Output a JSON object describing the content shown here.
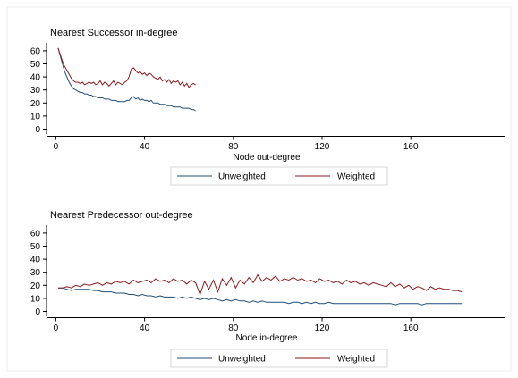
{
  "chart_data": [
    {
      "type": "line",
      "title": "Nearest Successor in-degree",
      "xlabel": "Node out-degree",
      "ylabel": "",
      "xlim": [
        0,
        200
      ],
      "ylim": [
        0,
        65
      ],
      "xticks": [
        0,
        40,
        80,
        120,
        160
      ],
      "xtick_labels": [
        "0",
        "40",
        "80",
        "120",
        "160"
      ],
      "yticks": [
        0,
        10,
        20,
        30,
        40,
        50,
        60
      ],
      "ytick_labels": [
        "0",
        "10",
        "20",
        "30",
        "40",
        "50",
        "60"
      ],
      "grid": false,
      "legend": "bottom",
      "series": [
        {
          "name": "Unweighted",
          "color": "#1f4e79",
          "x": [
            1,
            2,
            3,
            4,
            5,
            6,
            7,
            8,
            9,
            10,
            11,
            12,
            13,
            14,
            15,
            16,
            17,
            18,
            19,
            20,
            21,
            22,
            23,
            24,
            25,
            26,
            27,
            28,
            29,
            30,
            31,
            32,
            33,
            34,
            35,
            36,
            37,
            38,
            39,
            40,
            41,
            42,
            43,
            44,
            45,
            46,
            47,
            48,
            49,
            50,
            51,
            52,
            53,
            54,
            55,
            56,
            57,
            58,
            59,
            60,
            61,
            62,
            63
          ],
          "y": [
            62,
            56,
            50,
            44,
            40,
            36,
            33,
            31,
            30,
            29,
            28,
            28,
            27,
            27,
            26,
            26,
            25,
            25,
            24,
            24,
            24,
            23,
            23,
            23,
            22,
            22,
            22,
            21,
            21,
            21,
            21,
            22,
            22,
            24,
            25,
            23,
            24,
            22,
            23,
            22,
            22,
            21,
            22,
            20,
            20,
            20,
            19,
            19,
            19,
            18,
            18,
            18,
            17,
            17,
            17,
            17,
            16,
            16,
            16,
            16,
            15,
            15,
            14
          ]
        },
        {
          "name": "Weighted",
          "color": "#8b1a1a",
          "x": [
            1,
            2,
            3,
            4,
            5,
            6,
            7,
            8,
            9,
            10,
            11,
            12,
            13,
            14,
            15,
            16,
            17,
            18,
            19,
            20,
            21,
            22,
            23,
            24,
            25,
            26,
            27,
            28,
            29,
            30,
            31,
            32,
            33,
            34,
            35,
            36,
            37,
            38,
            39,
            40,
            41,
            42,
            43,
            44,
            45,
            46,
            47,
            48,
            49,
            50,
            51,
            52,
            53,
            54,
            55,
            56,
            57,
            58,
            59,
            60,
            61,
            62,
            63
          ],
          "y": [
            62,
            57,
            52,
            48,
            45,
            42,
            39,
            37,
            36,
            36,
            35,
            36,
            34,
            35,
            36,
            35,
            36,
            34,
            35,
            37,
            34,
            36,
            35,
            33,
            35,
            37,
            34,
            36,
            35,
            34,
            36,
            37,
            40,
            46,
            47,
            45,
            43,
            44,
            42,
            43,
            41,
            43,
            42,
            40,
            39,
            38,
            40,
            37,
            38,
            36,
            38,
            35,
            37,
            36,
            37,
            34,
            36,
            33,
            35,
            32,
            34,
            35,
            34
          ]
        }
      ]
    },
    {
      "type": "line",
      "title": "Nearest Predecessor out-degree",
      "xlabel": "Node in-degree",
      "ylabel": "",
      "xlim": [
        0,
        200
      ],
      "ylim": [
        0,
        65
      ],
      "xticks": [
        0,
        40,
        80,
        120,
        160
      ],
      "xtick_labels": [
        "0",
        "40",
        "80",
        "120",
        "160"
      ],
      "yticks": [
        0,
        10,
        20,
        30,
        40,
        50,
        60
      ],
      "ytick_labels": [
        "0",
        "10",
        "20",
        "30",
        "40",
        "50",
        "60"
      ],
      "grid": false,
      "legend": "bottom",
      "series": [
        {
          "name": "Unweighted",
          "color": "#1f4e79",
          "x": [
            1,
            3,
            5,
            7,
            9,
            11,
            13,
            15,
            17,
            19,
            21,
            23,
            25,
            27,
            29,
            31,
            33,
            35,
            37,
            39,
            41,
            43,
            45,
            47,
            49,
            51,
            53,
            55,
            57,
            59,
            61,
            63,
            65,
            67,
            69,
            71,
            73,
            75,
            77,
            79,
            81,
            83,
            85,
            87,
            89,
            91,
            93,
            95,
            97,
            99,
            101,
            103,
            105,
            107,
            109,
            111,
            113,
            115,
            117,
            119,
            121,
            123,
            125,
            127,
            129,
            131,
            133,
            135,
            137,
            139,
            141,
            143,
            145,
            147,
            149,
            151,
            153,
            155,
            157,
            159,
            161,
            163,
            165,
            167,
            169,
            171,
            173,
            175,
            177,
            179,
            181,
            183
          ],
          "y": [
            18,
            18,
            17,
            16,
            17,
            17,
            17,
            17,
            16,
            16,
            15,
            15,
            15,
            14,
            14,
            14,
            13,
            13,
            12,
            13,
            12,
            12,
            11,
            12,
            11,
            11,
            11,
            10,
            11,
            10,
            11,
            10,
            9,
            10,
            9,
            10,
            9,
            8,
            9,
            8,
            9,
            8,
            8,
            7,
            8,
            7,
            8,
            7,
            7,
            7,
            7,
            7,
            6,
            7,
            7,
            6,
            7,
            6,
            7,
            6,
            6,
            7,
            6,
            6,
            6,
            6,
            6,
            6,
            6,
            6,
            6,
            6,
            6,
            6,
            6,
            6,
            6,
            5,
            6,
            6,
            6,
            6,
            6,
            5,
            6,
            6,
            6,
            6,
            6,
            6,
            6,
            6
          ]
        },
        {
          "name": "Weighted",
          "color": "#8b1a1a",
          "x": [
            1,
            3,
            5,
            7,
            9,
            11,
            13,
            15,
            17,
            19,
            21,
            23,
            25,
            27,
            29,
            31,
            33,
            35,
            37,
            39,
            41,
            43,
            45,
            47,
            49,
            51,
            53,
            55,
            57,
            59,
            61,
            63,
            65,
            67,
            69,
            71,
            73,
            75,
            77,
            79,
            81,
            83,
            85,
            87,
            89,
            91,
            93,
            95,
            97,
            99,
            101,
            103,
            105,
            107,
            109,
            111,
            113,
            115,
            117,
            119,
            121,
            123,
            125,
            127,
            129,
            131,
            133,
            135,
            137,
            139,
            141,
            143,
            145,
            147,
            149,
            151,
            153,
            155,
            157,
            159,
            161,
            163,
            165,
            167,
            169,
            171,
            173,
            175,
            177,
            179,
            181,
            183
          ],
          "y": [
            18,
            18,
            19,
            18,
            20,
            19,
            21,
            20,
            21,
            22,
            20,
            22,
            21,
            23,
            22,
            23,
            21,
            24,
            22,
            23,
            24,
            22,
            25,
            23,
            24,
            22,
            25,
            23,
            24,
            21,
            24,
            22,
            13,
            23,
            17,
            24,
            15,
            25,
            20,
            26,
            18,
            24,
            21,
            26,
            22,
            28,
            23,
            26,
            24,
            27,
            23,
            25,
            24,
            26,
            24,
            25,
            23,
            24,
            22,
            25,
            23,
            24,
            22,
            23,
            21,
            24,
            22,
            23,
            21,
            22,
            20,
            22,
            21,
            20,
            19,
            22,
            19,
            21,
            18,
            20,
            17,
            19,
            18,
            16,
            19,
            17,
            18,
            17,
            17,
            16,
            16,
            15
          ]
        }
      ]
    }
  ]
}
